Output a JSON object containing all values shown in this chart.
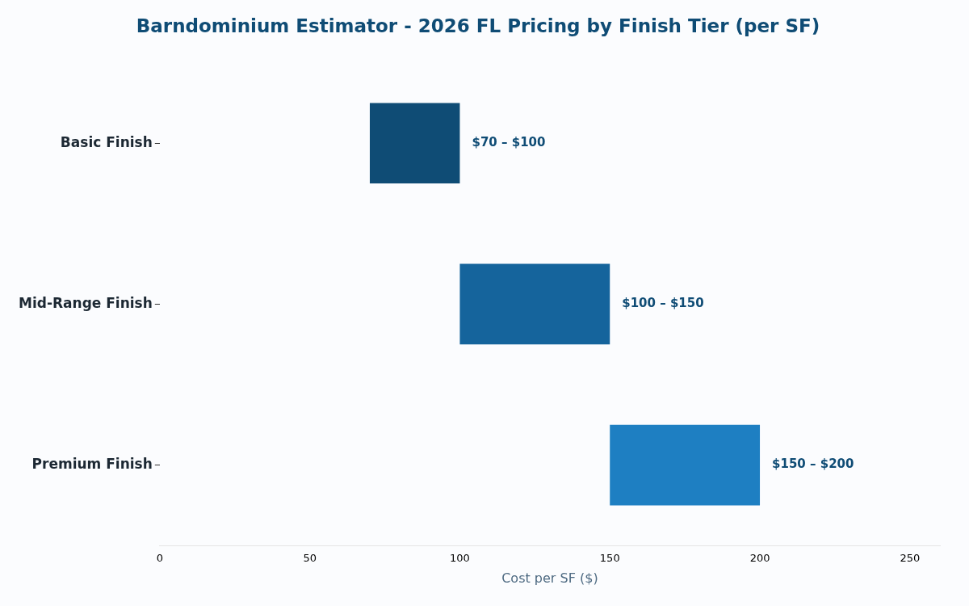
{
  "chart_data": {
    "type": "bar",
    "orientation": "horizontal",
    "title": "Barndominium Estimator - 2026 FL Pricing by Finish Tier (per SF)",
    "xlabel": "Cost per SF ($)",
    "categories": [
      "Basic Finish",
      "Mid-Range Finish",
      "Premium Finish"
    ],
    "base": [
      70,
      100,
      150
    ],
    "values": [
      30,
      50,
      50
    ],
    "colors": [
      "#0f4c75",
      "#15649c",
      "#1e7fc2"
    ],
    "annotations": [
      {
        "text": "$70 – $100",
        "x": 100,
        "y": "Basic Finish"
      },
      {
        "text": "$100 – $150",
        "x": 150,
        "y": "Mid-Range Finish"
      },
      {
        "text": "$150 – $200",
        "x": 200,
        "y": "Premium Finish"
      }
    ],
    "xlim": [
      0,
      260
    ],
    "xticks": [
      0,
      50,
      100,
      150,
      200,
      250
    ],
    "grid": false
  }
}
